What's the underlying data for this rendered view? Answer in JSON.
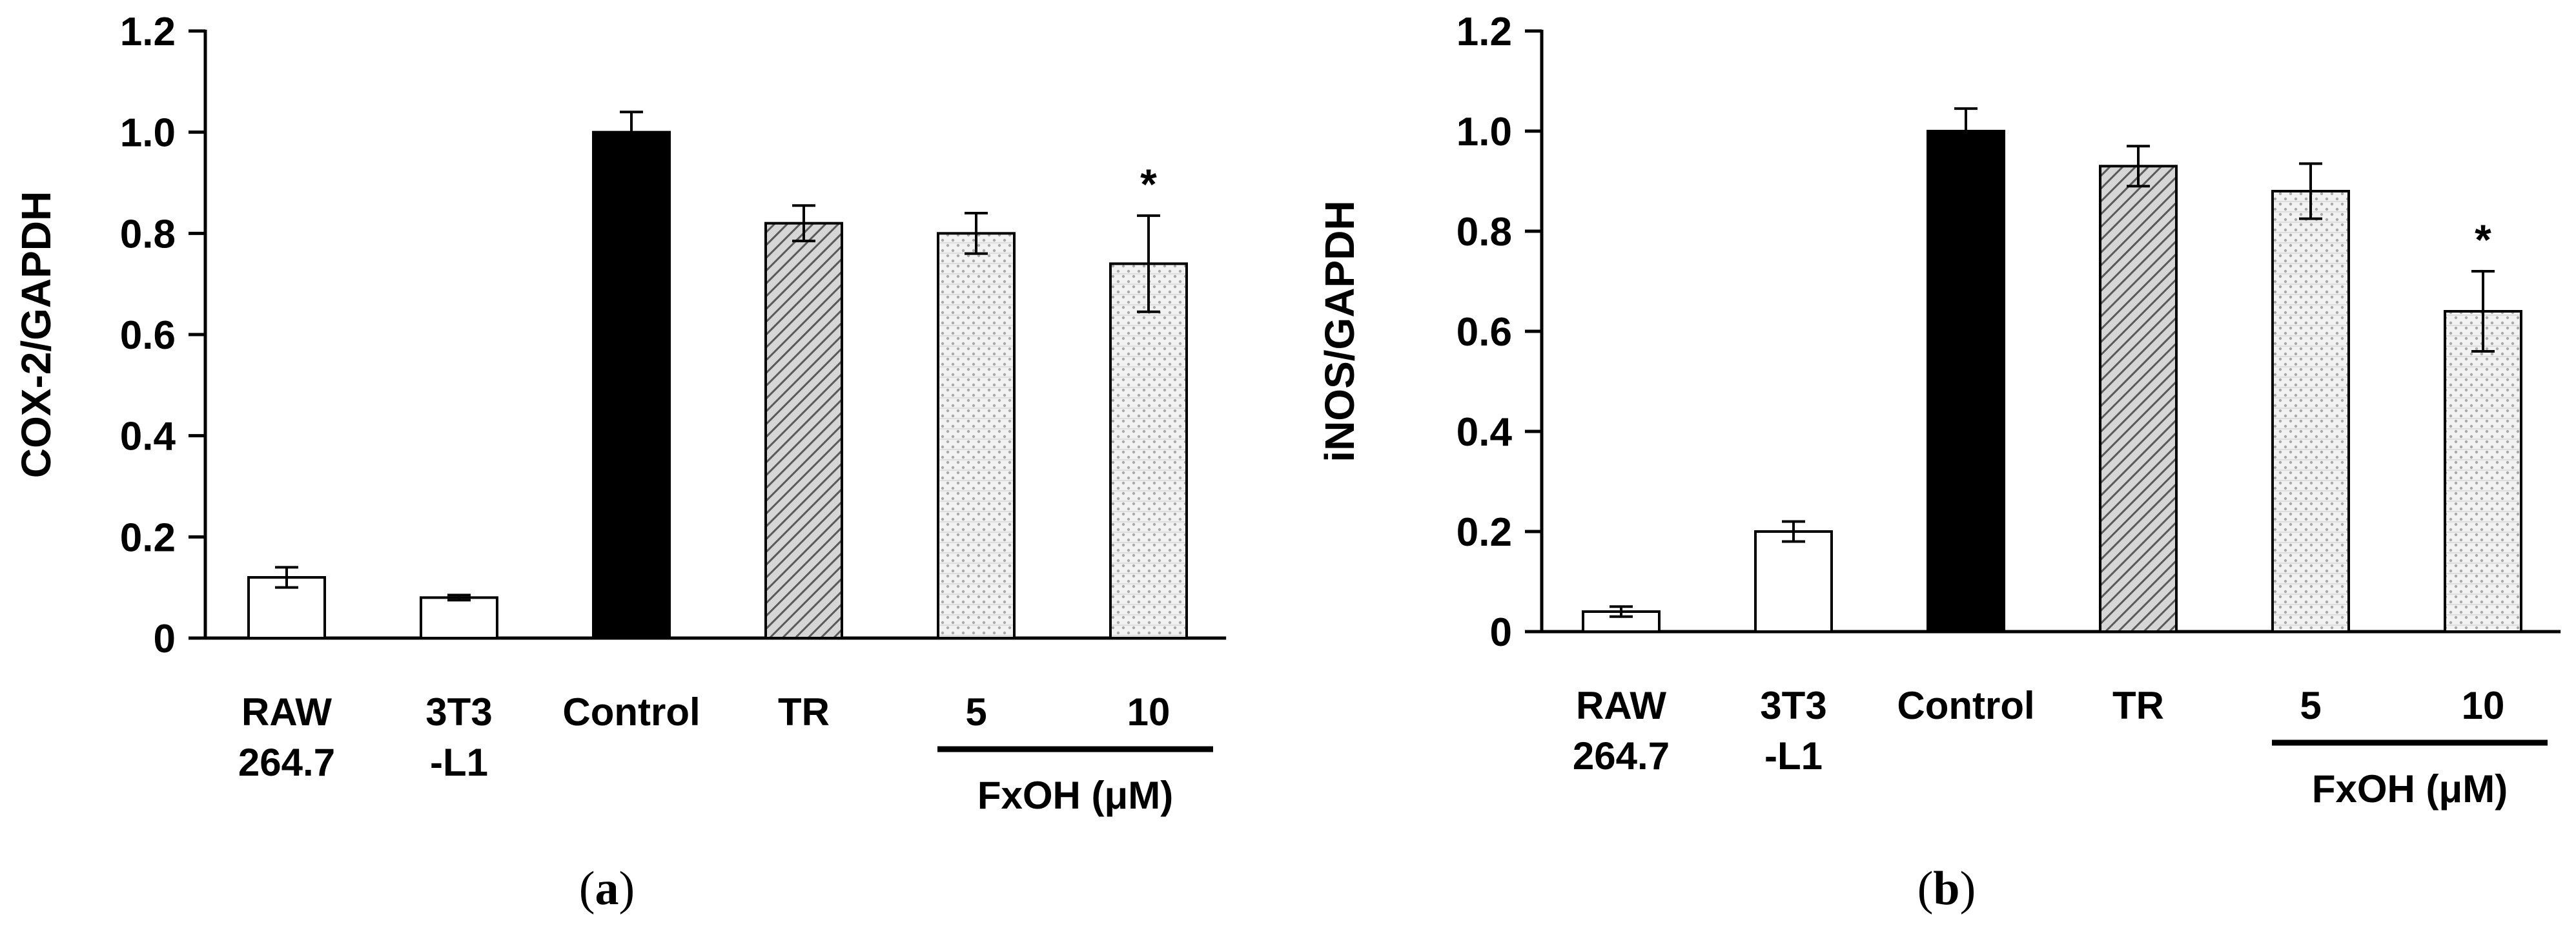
{
  "chart_data": [
    {
      "type": "bar",
      "panel_label": "a",
      "ylabel": "COX-2/GAPDH",
      "ylim": [
        0,
        1.2
      ],
      "yticks": [
        "0",
        "0.2",
        "0.4",
        "0.6",
        "0.8",
        "1.0",
        "1.2"
      ],
      "grid": false,
      "categories": [
        [
          "RAW",
          "264.7"
        ],
        [
          "3T3",
          "-L1"
        ],
        [
          "Control"
        ],
        [
          "TR"
        ],
        [
          "5"
        ],
        [
          "10"
        ]
      ],
      "values": [
        0.12,
        0.08,
        1.0,
        0.82,
        0.8,
        0.74
      ],
      "errors": [
        0.02,
        0.005,
        0.04,
        0.035,
        0.04,
        0.095
      ],
      "fills": [
        "white",
        "white",
        "black",
        "diagonal-hatch",
        "dotted",
        "dotted"
      ],
      "annotations": [
        "",
        "",
        "",
        "",
        "",
        "*"
      ],
      "group_label": "FxOH (μM)"
    },
    {
      "type": "bar",
      "panel_label": "b",
      "ylabel": "iNOS/GAPDH",
      "ylim": [
        0,
        1.2
      ],
      "yticks": [
        "0",
        "0.2",
        "0.4",
        "0.6",
        "0.8",
        "1.0",
        "1.2"
      ],
      "grid": false,
      "categories": [
        [
          "RAW",
          "264.7"
        ],
        [
          "3T3",
          "-L1"
        ],
        [
          "Control"
        ],
        [
          "TR"
        ],
        [
          "5"
        ],
        [
          "10"
        ]
      ],
      "values": [
        0.04,
        0.2,
        1.0,
        0.93,
        0.88,
        0.64
      ],
      "errors": [
        0.01,
        0.02,
        0.045,
        0.04,
        0.055,
        0.08
      ],
      "fills": [
        "white",
        "white",
        "black",
        "diagonal-hatch",
        "dotted",
        "dotted"
      ],
      "annotations": [
        "",
        "",
        "",
        "",
        "",
        "*"
      ],
      "group_label": "FxOH (μM)"
    }
  ]
}
